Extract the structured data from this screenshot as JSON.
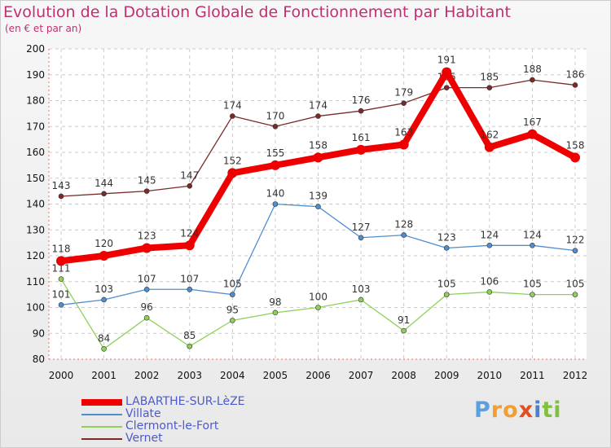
{
  "chart_data": {
    "type": "line",
    "title": "Evolution de la Dotation Globale de Fonctionnement par Habitant",
    "subtitle": "(en € et par an)",
    "xlabel": "",
    "ylabel": "",
    "x": [
      "2000",
      "2001",
      "2002",
      "2003",
      "2004",
      "2005",
      "2006",
      "2007",
      "2008",
      "2009",
      "2010",
      "2011",
      "2012"
    ],
    "ylim": [
      80,
      200
    ],
    "yticks": [
      "80",
      "90",
      "100",
      "110",
      "120",
      "130",
      "140",
      "150",
      "160",
      "170",
      "180",
      "190",
      "200"
    ],
    "series": [
      {
        "name": "Vernet",
        "color": "#7b2a2a",
        "values": [
          143,
          144,
          145,
          147,
          174,
          170,
          174,
          176,
          179,
          185,
          185,
          188,
          186
        ]
      },
      {
        "name": "Villate",
        "color": "#4f8ed0",
        "values": [
          101,
          103,
          107,
          107,
          105,
          140,
          139,
          127,
          128,
          123,
          124,
          124,
          122
        ]
      },
      {
        "name": "Clermont-le-Fort",
        "color": "#8fd05a",
        "values": [
          111,
          84,
          96,
          85,
          95,
          98,
          100,
          103,
          91,
          105,
          106,
          105,
          105
        ]
      },
      {
        "name": "LABARTHE-SUR-LèZE",
        "color": "#ee0000",
        "values": [
          118,
          120,
          123,
          124,
          152,
          155,
          158,
          161,
          163,
          191,
          162,
          167,
          158
        ]
      }
    ],
    "legend_order": [
      "LABARTHE-SUR-LèZE",
      "Villate",
      "Clermont-le-Fort",
      "Vernet"
    ]
  },
  "logo": {
    "letters": [
      "P",
      "r",
      "o",
      "x",
      "i",
      "t",
      "i"
    ],
    "colors": [
      "#5aa0e0",
      "#f0a030",
      "#f0a030",
      "#e05020",
      "#4a80d0",
      "#80c040",
      "#80c040"
    ]
  }
}
